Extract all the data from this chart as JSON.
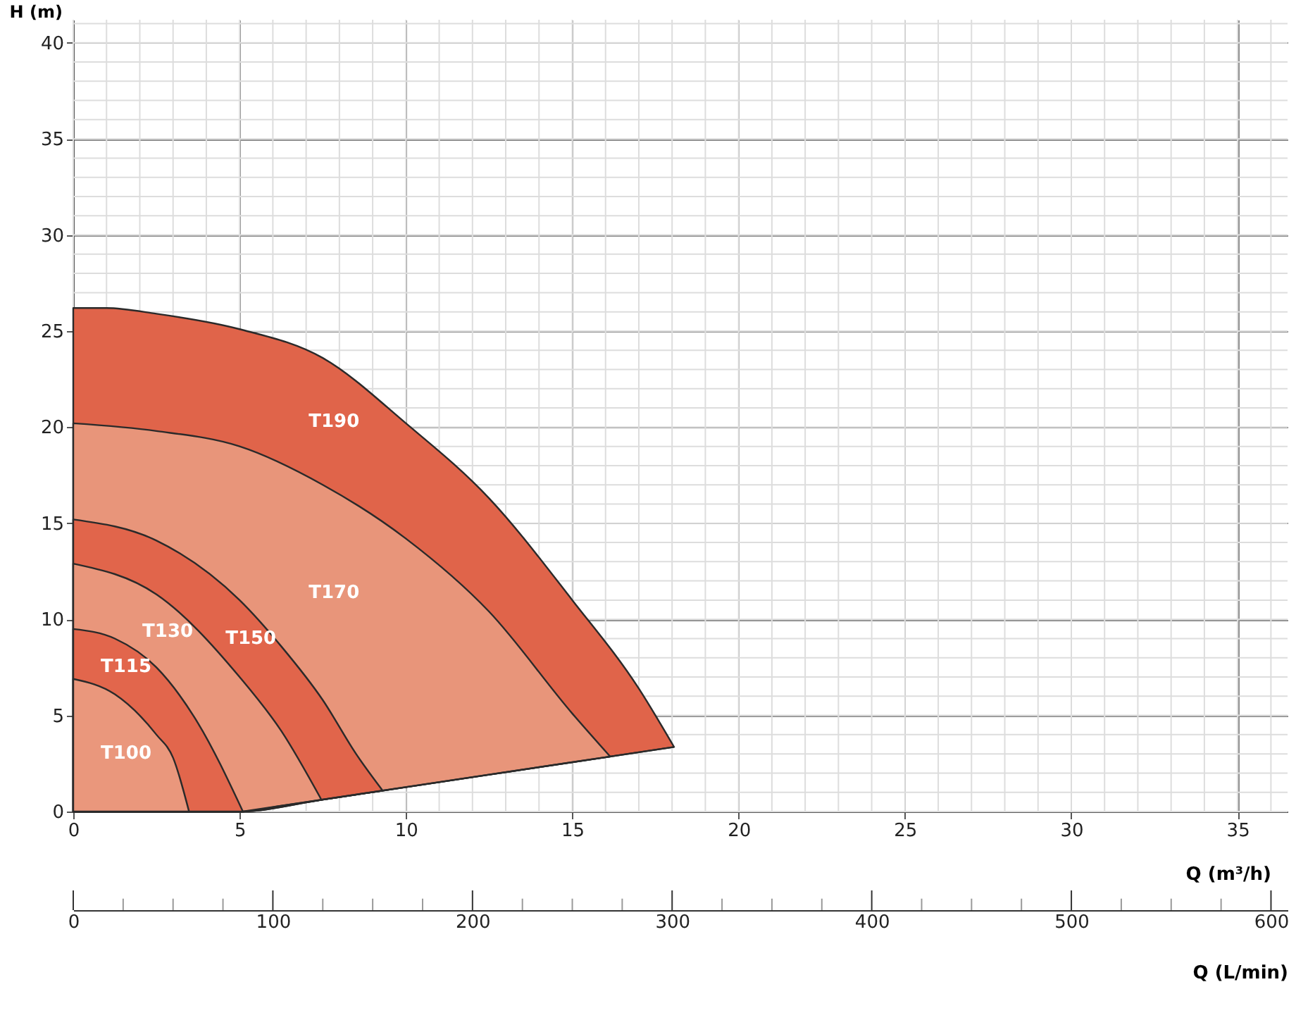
{
  "chart_data": {
    "type": "area",
    "xlabel": "Q (m³/h)",
    "ylabel": "H (m)",
    "x2label": "Q (L/min)",
    "xlim": [
      0,
      36.5
    ],
    "xticks": [
      0,
      5,
      10,
      15,
      20,
      25,
      30,
      35
    ],
    "ylim": [
      0,
      41.2
    ],
    "yticks": [
      0,
      5,
      10,
      15,
      20,
      25,
      30,
      35,
      40
    ],
    "x2lim": [
      0,
      608.3
    ],
    "x2ticks": [
      0,
      100,
      200,
      300,
      400,
      500,
      600
    ],
    "grid": true,
    "series": [
      {
        "name": "T190",
        "color": "#e0644a",
        "x": [
          0,
          1,
          2.5,
          5,
          7.5,
          10,
          12.5,
          15,
          17,
          18.06
        ],
        "values": [
          26.2,
          26.2,
          25.9,
          25.1,
          23.6,
          20.2,
          16.3,
          11.0,
          6.4,
          3.36
        ]
      },
      {
        "name": "T170",
        "color": "#e8957a",
        "x": [
          0,
          2.5,
          5,
          7.5,
          10,
          12.5,
          15,
          16.14
        ],
        "values": [
          20.2,
          19.8,
          19.0,
          17.0,
          14.2,
          10.4,
          5.1,
          2.86
        ]
      },
      {
        "name": "T150",
        "color": "#e1654b",
        "x": [
          0,
          2.5,
          5,
          6.25,
          7.5,
          8.5,
          9.3
        ],
        "values": [
          15.2,
          14.1,
          11.0,
          8.6,
          5.8,
          3.0,
          1.09
        ]
      },
      {
        "name": "T130",
        "color": "#e9967b",
        "x": [
          0,
          2.5,
          5,
          6.25,
          7.46
        ],
        "values": [
          12.9,
          11.3,
          7.0,
          4.2,
          0.61
        ]
      },
      {
        "name": "T115",
        "color": "#e2664c",
        "x": [
          0,
          1.25,
          2.5,
          3.75,
          5.1
        ],
        "values": [
          9.5,
          9.0,
          7.5,
          4.6,
          0
        ]
      },
      {
        "name": "T100",
        "color": "#ea977c",
        "x": [
          0,
          1.25,
          2.5,
          3,
          3.48
        ],
        "values": [
          6.9,
          6.1,
          4.0,
          2.8,
          0
        ]
      },
      {
        "type": "line",
        "color": "#2a2a2a",
        "x": [
          5.1,
          18.06
        ],
        "values": [
          0,
          3.36
        ]
      }
    ]
  }
}
